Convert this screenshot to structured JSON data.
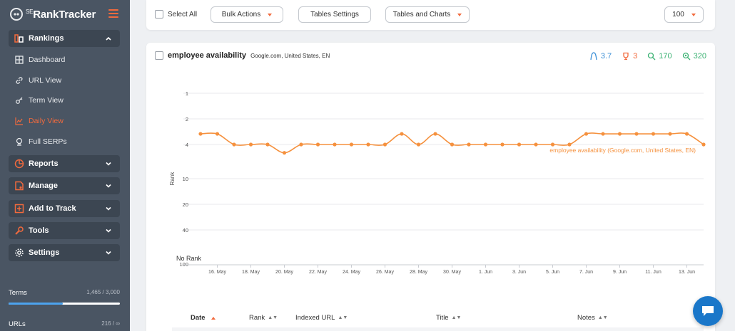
{
  "app": {
    "logo_text": "RankTracker",
    "logo_sup": "SE"
  },
  "sidebar": {
    "groups": {
      "rankings": "Rankings",
      "reports": "Reports",
      "manage": "Manage",
      "add_to_track": "Add to Track",
      "tools": "Tools",
      "settings": "Settings"
    },
    "rankings_items": {
      "dashboard": "Dashboard",
      "url_view": "URL View",
      "term_view": "Term View",
      "daily_view": "Daily View",
      "full_serps": "Full SERPs"
    },
    "active_item": "Daily View",
    "stats": {
      "terms_label": "Terms",
      "terms_value": "1,465 / 3,000",
      "terms_fraction": 0.49,
      "urls_label": "URLs",
      "urls_value": "216 / ∞"
    }
  },
  "toolbar": {
    "select_all": "Select All",
    "bulk_actions": "Bulk Actions",
    "tables_settings": "Tables Settings",
    "tables_and_charts": "Tables and Charts",
    "per_page": "100"
  },
  "card": {
    "keyword": "employee availability",
    "keyword_meta": "Google.com, United States, EN",
    "metrics": {
      "avg": "3.7",
      "best": "3",
      "indexed": "170",
      "volume": "320"
    }
  },
  "chart_data": {
    "type": "line",
    "ylabel": "Rank",
    "y_ticks": [
      "1",
      "2",
      "4",
      "10",
      "20",
      "40",
      "100"
    ],
    "no_rank_label": "No Rank",
    "x_ticks": [
      "16. May",
      "18. May",
      "20. May",
      "22. May",
      "24. May",
      "26. May",
      "28. May",
      "30. May",
      "1. Jun",
      "3. Jun",
      "5. Jun",
      "7. Jun",
      "9. Jun",
      "11. Jun",
      "13. Jun"
    ],
    "series": [
      {
        "name": "employee availability (Google.com, United States, EN)",
        "color": "#f5913e",
        "points": [
          {
            "x": "15. May",
            "y": 3
          },
          {
            "x": "16. May",
            "y": 3
          },
          {
            "x": "17. May",
            "y": 4
          },
          {
            "x": "18. May",
            "y": 4
          },
          {
            "x": "19. May",
            "y": 4
          },
          {
            "x": "20. May",
            "y": 5
          },
          {
            "x": "21. May",
            "y": 4
          },
          {
            "x": "22. May",
            "y": 4
          },
          {
            "x": "23. May",
            "y": 4
          },
          {
            "x": "24. May",
            "y": 4
          },
          {
            "x": "25. May",
            "y": 4
          },
          {
            "x": "26. May",
            "y": 4
          },
          {
            "x": "27. May",
            "y": 3
          },
          {
            "x": "28. May",
            "y": 4
          },
          {
            "x": "29. May",
            "y": 3
          },
          {
            "x": "30. May",
            "y": 4
          },
          {
            "x": "31. May",
            "y": 4
          },
          {
            "x": "1. Jun",
            "y": 4
          },
          {
            "x": "2. Jun",
            "y": 4
          },
          {
            "x": "3. Jun",
            "y": 4
          },
          {
            "x": "4. Jun",
            "y": 4
          },
          {
            "x": "5. Jun",
            "y": 4
          },
          {
            "x": "6. Jun",
            "y": 4
          },
          {
            "x": "7. Jun",
            "y": 3
          },
          {
            "x": "8. Jun",
            "y": 3
          },
          {
            "x": "9. Jun",
            "y": 3
          },
          {
            "x": "10. Jun",
            "y": 3
          },
          {
            "x": "11. Jun",
            "y": 3
          },
          {
            "x": "12. Jun",
            "y": 3
          },
          {
            "x": "13. Jun",
            "y": 3
          },
          {
            "x": "14. Jun",
            "y": 4
          }
        ]
      }
    ],
    "grid": true
  },
  "table": {
    "columns": [
      "Date",
      "Rank",
      "Indexed URL",
      "Title",
      "Notes"
    ]
  },
  "colors": {
    "accent": "#f26a3d",
    "sidebar_bg": "#4a5563",
    "avg": "#3b8fd6",
    "best": "#f26a3d",
    "indexed": "#3bb273",
    "volume": "#3bb273",
    "chat": "#1a77c9"
  }
}
